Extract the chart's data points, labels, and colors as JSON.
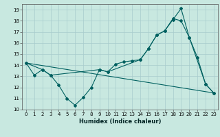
{
  "title": "",
  "xlabel": "Humidex (Indice chaleur)",
  "xlim": [
    -0.5,
    23.5
  ],
  "ylim": [
    10,
    19.5
  ],
  "yticks": [
    10,
    11,
    12,
    13,
    14,
    15,
    16,
    17,
    18,
    19
  ],
  "xticks": [
    0,
    1,
    2,
    3,
    4,
    5,
    6,
    7,
    8,
    9,
    10,
    11,
    12,
    13,
    14,
    15,
    16,
    17,
    18,
    19,
    20,
    21,
    22,
    23
  ],
  "bg_color": "#c8e8e0",
  "grid_color": "#a8cccc",
  "line_color": "#006060",
  "line1_x": [
    0,
    1,
    2,
    3,
    4,
    5,
    6,
    7,
    8,
    9,
    10,
    11,
    12,
    13,
    14,
    15,
    16,
    17,
    18,
    19,
    20,
    21,
    22,
    23
  ],
  "line1_y": [
    14.2,
    13.1,
    13.6,
    13.1,
    12.2,
    11.0,
    10.4,
    11.1,
    12.0,
    13.6,
    13.4,
    14.1,
    14.3,
    14.4,
    14.5,
    15.5,
    16.7,
    17.1,
    18.1,
    19.1,
    16.5,
    14.7,
    12.3,
    11.5
  ],
  "line2_x": [
    0,
    2,
    3,
    9,
    10,
    14,
    15,
    16,
    17,
    18,
    19,
    20,
    22,
    23
  ],
  "line2_y": [
    14.2,
    13.6,
    13.1,
    13.6,
    13.4,
    14.5,
    15.5,
    16.7,
    17.1,
    18.2,
    18.0,
    16.5,
    12.3,
    11.5
  ],
  "line3_x": [
    0,
    23
  ],
  "line3_y": [
    14.2,
    11.5
  ],
  "tick_fontsize": 5,
  "xlabel_fontsize": 6,
  "marker_size": 2.0,
  "line_width": 0.8
}
